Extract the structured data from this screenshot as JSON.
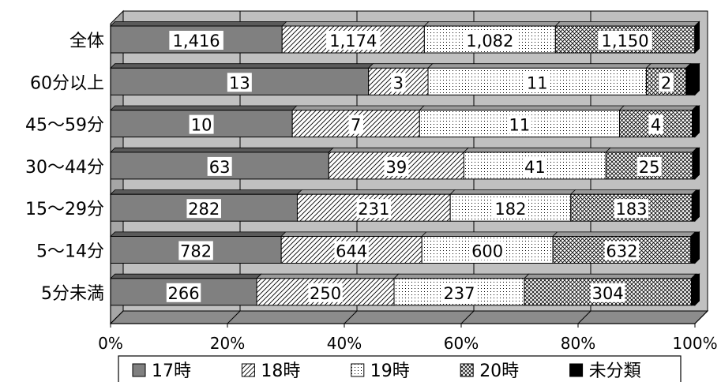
{
  "chart_data": {
    "type": "bar",
    "orientation": "horizontal",
    "stacked": "percent",
    "categories": [
      "全体",
      "60分以上",
      "45～59分",
      "30～44分",
      "15～29分",
      "5～14分",
      "5分未満"
    ],
    "series": [
      {
        "name": "17時",
        "values": [
          1416,
          13,
          10,
          63,
          282,
          782,
          266
        ],
        "labels": [
          "1,416",
          "13",
          "10",
          "63",
          "282",
          "782",
          "266"
        ],
        "color": "#808080"
      },
      {
        "name": "18時",
        "values": [
          1174,
          3,
          7,
          39,
          231,
          644,
          250
        ],
        "labels": [
          "1,174",
          "3",
          "7",
          "39",
          "231",
          "644",
          "250"
        ],
        "color": "#d9d9d9"
      },
      {
        "name": "19時",
        "values": [
          1082,
          11,
          11,
          41,
          182,
          600,
          237
        ],
        "labels": [
          "1,082",
          "11",
          "11",
          "41",
          "182",
          "600",
          "237"
        ],
        "color": "#f7f7f7"
      },
      {
        "name": "20時",
        "values": [
          1150,
          2,
          4,
          25,
          183,
          632,
          304
        ],
        "labels": [
          "1,150",
          "2",
          "4",
          "25",
          "183",
          "632",
          "304"
        ],
        "color": "#c8c8c8"
      },
      {
        "name": "未分類",
        "values": [
          1.4,
          0.45,
          0.15,
          0.7,
          4.5,
          19,
          6.5
        ],
        "labels": [
          "",
          "",
          "",
          "",
          "",
          "",
          ""
        ],
        "color": "#000000"
      }
    ],
    "xaxis": {
      "ticks": [
        "0%",
        "20%",
        "40%",
        "60%",
        "80%",
        "100%"
      ],
      "range": [
        0,
        100
      ]
    },
    "grid": true,
    "legend": {
      "placement": "bottom",
      "entries": [
        "17時",
        "18時",
        "19時",
        "20時",
        "未分類"
      ]
    }
  }
}
